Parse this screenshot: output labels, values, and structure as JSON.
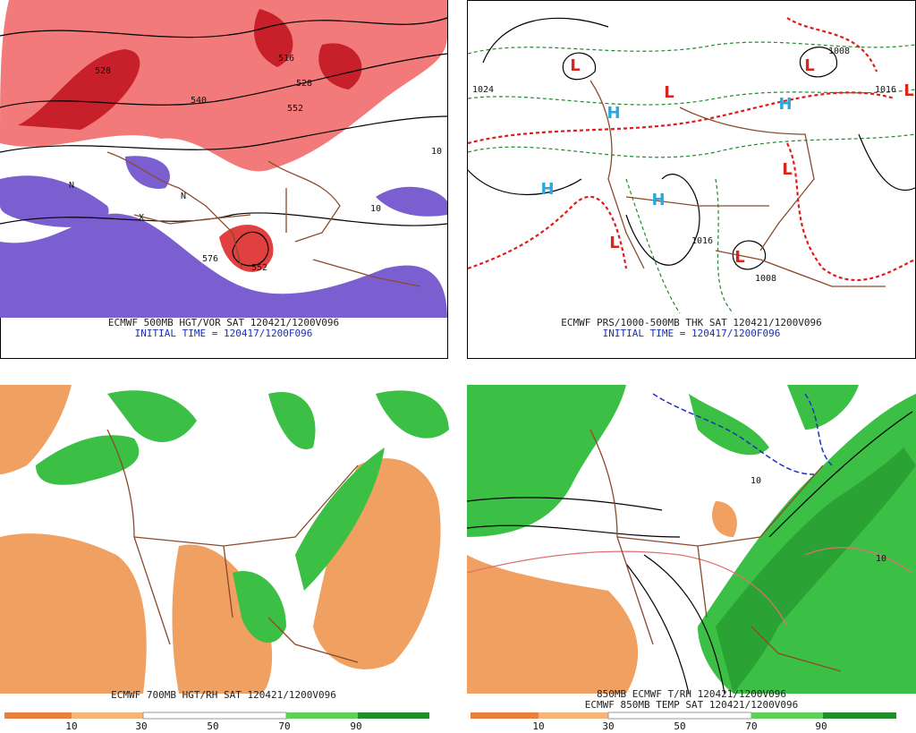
{
  "panels": [
    {
      "caption": "ECMWF 500MB HGT/VOR SAT 120421/1200V096",
      "subcaption": "INITIAL TIME = 120417/1200F096",
      "labels": [
        "528",
        "540",
        "552",
        "516",
        "528",
        "10",
        "10",
        "N",
        "N",
        "X",
        "576",
        "552"
      ]
    },
    {
      "caption": "ECMWF PRS/1000-500MB THK SAT 120421/1200V096",
      "subcaption": "INITIAL TIME = 120417/1200F096",
      "highs": [
        "H",
        "H",
        "H",
        "H"
      ],
      "lows": [
        "L",
        "L",
        "L",
        "L",
        "L",
        "L",
        "L"
      ],
      "labels": [
        "1024",
        "1016",
        "1008",
        "1016",
        "1008"
      ]
    },
    {
      "caption": "ECMWF 700MB HGT/RH SAT 120421/1200V096",
      "legend": [
        10,
        30,
        50,
        70,
        90
      ]
    },
    {
      "caption": "850MB ECMWF T/RH 120421/1200V096",
      "subcaption": "ECMWF 850MB TEMP SAT 120421/1200V096",
      "labels": [
        "10",
        "10"
      ],
      "legend": [
        10,
        30,
        50,
        70,
        90
      ]
    }
  ]
}
